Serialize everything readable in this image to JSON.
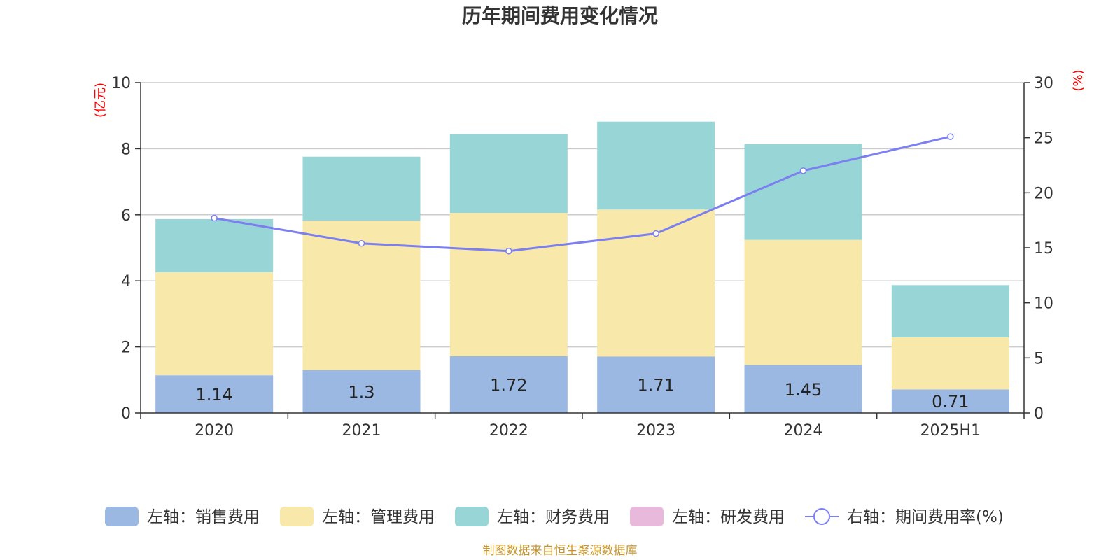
{
  "chart_data": {
    "type": "bar",
    "title": "历年期间费用变化情况",
    "categories": [
      "2020",
      "2021",
      "2022",
      "2023",
      "2024",
      "2025H1"
    ],
    "left_axis": {
      "unit": "(亿元)",
      "ylim": [
        0,
        10
      ],
      "ticks": [
        "0",
        "2",
        "4",
        "6",
        "8",
        "10"
      ]
    },
    "right_axis": {
      "unit": "(%)",
      "ylim": [
        0,
        30
      ],
      "ticks": [
        "0",
        "5",
        "10",
        "15",
        "20",
        "25",
        "30"
      ]
    },
    "series": [
      {
        "name": "左轴：销售费用",
        "kind": "bar",
        "color": "#9bb8e3",
        "values": [
          1.14,
          1.3,
          1.72,
          1.71,
          1.45,
          0.71
        ],
        "labels": [
          "1.14",
          "1.3",
          "1.72",
          "1.71",
          "1.45",
          "0.71"
        ]
      },
      {
        "name": "左轴：管理费用",
        "kind": "bar",
        "color": "#f8e8a9",
        "values": [
          3.12,
          4.52,
          4.34,
          4.45,
          3.79,
          1.58
        ]
      },
      {
        "name": "左轴：财务费用",
        "kind": "bar",
        "color": "#98d5d6",
        "values": [
          1.61,
          1.94,
          2.38,
          2.66,
          2.9,
          1.58
        ]
      },
      {
        "name": "左轴：研发费用",
        "kind": "bar",
        "color": "#e8b9da",
        "values": [
          0,
          0,
          0,
          0,
          0,
          0
        ]
      },
      {
        "name": "右轴：期间费用率(%)",
        "kind": "line",
        "color": "#7b7ff0",
        "values": [
          17.7,
          15.4,
          14.7,
          16.3,
          22.0,
          25.1
        ]
      }
    ],
    "grid": true,
    "legend_position": "bottom"
  },
  "source_note": "制图数据来自恒生聚源数据库"
}
